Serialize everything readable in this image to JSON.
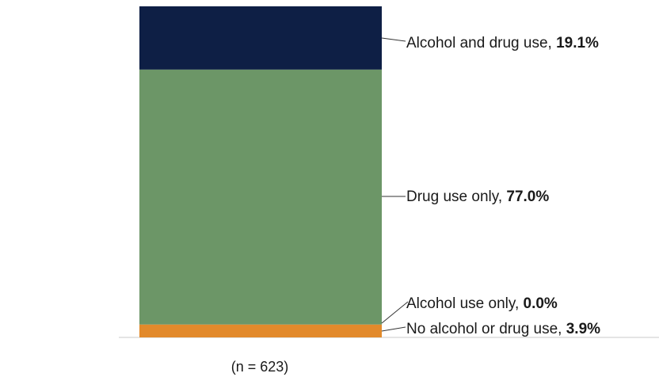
{
  "chart_data": {
    "type": "bar",
    "stacked": true,
    "unit": "%",
    "ylim": [
      0,
      100
    ],
    "grid": false,
    "legend": "none",
    "series": [
      {
        "name": "No alcohol or drug use",
        "value": 3.9,
        "value_label": "3.9%",
        "color": "#e28a2b"
      },
      {
        "name": "Alcohol use only",
        "value": 0.0,
        "value_label": "0.0%",
        "color": "#e28a2b"
      },
      {
        "name": "Drug use only",
        "value": 77.0,
        "value_label": "77.0%",
        "color": "#6c9667"
      },
      {
        "name": "Alcohol and drug use",
        "value": 19.1,
        "value_label": "19.1%",
        "color": "#0e1f45"
      }
    ],
    "sample_label": "(n = 623)"
  }
}
